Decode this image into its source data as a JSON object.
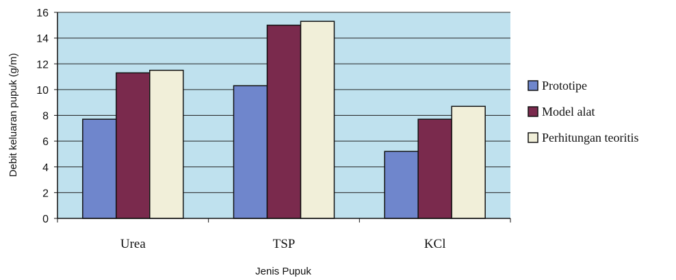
{
  "chart_data": {
    "type": "bar",
    "title": "",
    "xlabel": "Jenis Pupuk",
    "ylabel": "Debit keluaran pupuk (g/m)",
    "categories": [
      "Urea",
      "TSP",
      "KCl"
    ],
    "series": [
      {
        "name": "Prototipe",
        "values": [
          7.7,
          10.3,
          5.2
        ]
      },
      {
        "name": "Model alat",
        "values": [
          11.3,
          15.0,
          7.7
        ]
      },
      {
        "name": "Perhitungan teoritis",
        "values": [
          11.5,
          15.3,
          8.7
        ]
      }
    ],
    "ylim": [
      0,
      16
    ],
    "yticks": [
      0,
      2,
      4,
      6,
      8,
      10,
      12,
      14,
      16
    ],
    "grid": true,
    "legend_position": "right",
    "colors": {
      "plot_background": "#bfe1ee",
      "grid": "#222222",
      "series": [
        "#6f86cc",
        "#7a2a4d",
        "#f1efd9"
      ]
    }
  }
}
